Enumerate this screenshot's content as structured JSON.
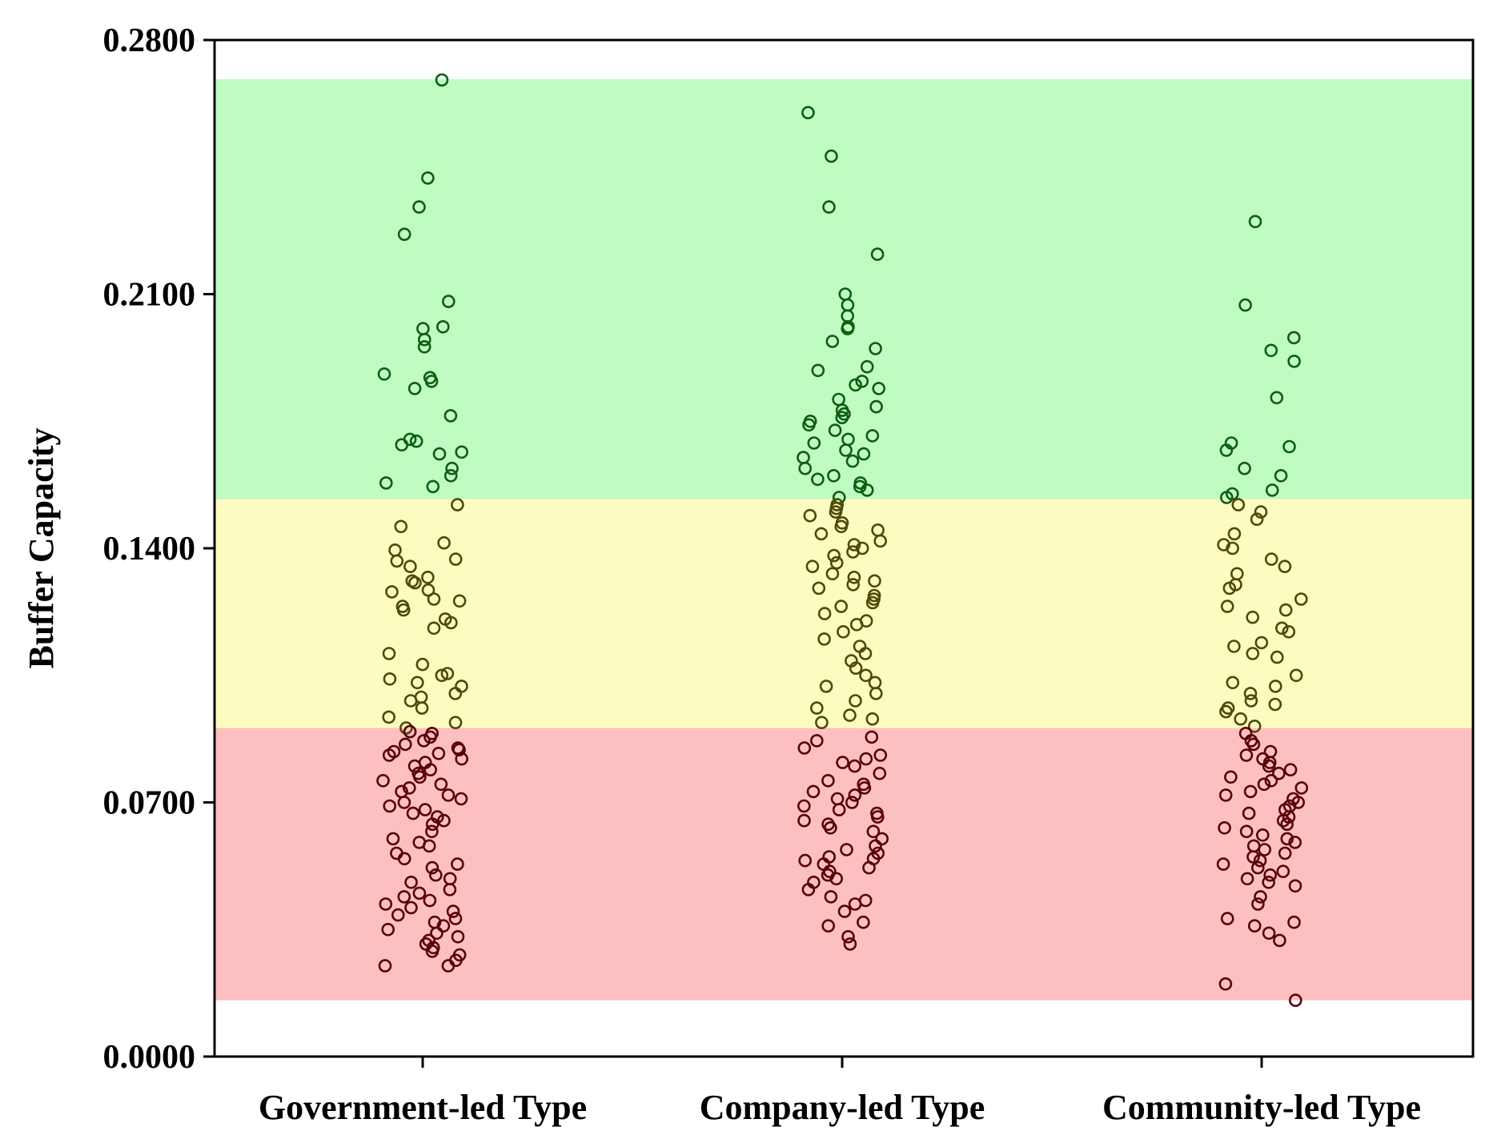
{
  "chart_data": {
    "type": "scatter",
    "title": "",
    "xlabel": "",
    "ylabel": "Buffer Capacity",
    "ylim": [
      0.0,
      0.28
    ],
    "yticks": [
      "0.0000",
      "0.0700",
      "0.1400",
      "0.2100",
      "0.2800"
    ],
    "categories": [
      "Government-led Type",
      "Company-led Type",
      "Community-led Type"
    ],
    "bands": [
      {
        "name": "high",
        "from": 0.1535,
        "to": 0.2692,
        "color": "#c0fbc1"
      },
      {
        "name": "medium",
        "from": 0.0905,
        "to": 0.1535,
        "color": "#fdfcc0"
      },
      {
        "name": "low",
        "from": 0.0155,
        "to": 0.0905,
        "color": "#fcc0c0"
      }
    ],
    "marker_color_scale": {
      "low": "#5a0008",
      "mid": "#4e4a06",
      "high": "#0c5e10"
    },
    "series": [
      {
        "name": "Government-led Type",
        "values": [
          0.269,
          0.242,
          0.234,
          0.2265,
          0.208,
          0.201,
          0.2005,
          0.1975,
          0.1955,
          0.188,
          0.187,
          0.186,
          0.184,
          0.1765,
          0.17,
          0.1695,
          0.1685,
          0.1665,
          0.166,
          0.162,
          0.16,
          0.158,
          0.157,
          0.152,
          0.146,
          0.1415,
          0.1395,
          0.137,
          0.1365,
          0.135,
          0.132,
          0.131,
          0.1305,
          0.1285,
          0.128,
          0.126,
          0.1255,
          0.124,
          0.123,
          0.1205,
          0.1195,
          0.118,
          0.111,
          0.108,
          0.1055,
          0.105,
          0.104,
          0.103,
          0.102,
          0.1,
          0.099,
          0.098,
          0.096,
          0.0935,
          0.092,
          0.0905,
          0.0895,
          0.089,
          0.088,
          0.087,
          0.086,
          0.085,
          0.0845,
          0.084,
          0.0835,
          0.083,
          0.082,
          0.081,
          0.08,
          0.079,
          0.078,
          0.077,
          0.076,
          0.075,
          0.074,
          0.073,
          0.072,
          0.071,
          0.07,
          0.069,
          0.068,
          0.067,
          0.066,
          0.065,
          0.064,
          0.062,
          0.06,
          0.059,
          0.058,
          0.056,
          0.0545,
          0.053,
          0.052,
          0.05,
          0.049,
          0.048,
          0.046,
          0.045,
          0.044,
          0.043,
          0.042,
          0.041,
          0.04,
          0.039,
          0.038,
          0.037,
          0.036,
          0.035,
          0.034,
          0.033,
          0.032,
          0.031,
          0.03,
          0.029,
          0.028,
          0.0265,
          0.025,
          0.025
        ]
      },
      {
        "name": "Company-led Type",
        "values": [
          0.26,
          0.248,
          0.234,
          0.221,
          0.21,
          0.207,
          0.204,
          0.201,
          0.2005,
          0.197,
          0.195,
          0.19,
          0.189,
          0.186,
          0.185,
          0.184,
          0.181,
          0.179,
          0.178,
          0.177,
          0.176,
          0.175,
          0.174,
          0.1725,
          0.171,
          0.17,
          0.169,
          0.167,
          0.166,
          0.165,
          0.164,
          0.162,
          0.16,
          0.159,
          0.158,
          0.157,
          0.156,
          0.154,
          0.152,
          0.151,
          0.15,
          0.149,
          0.147,
          0.146,
          0.145,
          0.144,
          0.142,
          0.141,
          0.14,
          0.139,
          0.138,
          0.136,
          0.135,
          0.133,
          0.132,
          0.131,
          0.13,
          0.129,
          0.127,
          0.126,
          0.125,
          0.124,
          0.122,
          0.12,
          0.119,
          0.117,
          0.115,
          0.113,
          0.111,
          0.109,
          0.107,
          0.105,
          0.103,
          0.102,
          0.1,
          0.098,
          0.096,
          0.094,
          0.093,
          0.092,
          0.088,
          0.087,
          0.085,
          0.083,
          0.082,
          0.081,
          0.08,
          0.078,
          0.076,
          0.075,
          0.074,
          0.073,
          0.072,
          0.071,
          0.07,
          0.069,
          0.068,
          0.067,
          0.066,
          0.065,
          0.064,
          0.063,
          0.062,
          0.06,
          0.058,
          0.057,
          0.056,
          0.055,
          0.0545,
          0.054,
          0.053,
          0.052,
          0.051,
          0.05,
          0.049,
          0.048,
          0.046,
          0.044,
          0.043,
          0.042,
          0.04,
          0.037,
          0.036,
          0.033,
          0.031
        ]
      },
      {
        "name": "Community-led Type",
        "values": [
          0.23,
          0.207,
          0.198,
          0.1945,
          0.1915,
          0.1815,
          0.169,
          0.168,
          0.167,
          0.162,
          0.16,
          0.156,
          0.155,
          0.154,
          0.152,
          0.15,
          0.148,
          0.144,
          0.141,
          0.14,
          0.137,
          0.135,
          0.133,
          0.13,
          0.129,
          0.126,
          0.124,
          0.123,
          0.121,
          0.118,
          0.117,
          0.114,
          0.113,
          0.111,
          0.11,
          0.105,
          0.103,
          0.102,
          0.1,
          0.098,
          0.097,
          0.096,
          0.095,
          0.093,
          0.091,
          0.089,
          0.087,
          0.086,
          0.084,
          0.083,
          0.082,
          0.081,
          0.08,
          0.079,
          0.078,
          0.077,
          0.076,
          0.075,
          0.074,
          0.073,
          0.072,
          0.071,
          0.07,
          0.069,
          0.068,
          0.067,
          0.066,
          0.065,
          0.064,
          0.063,
          0.062,
          0.061,
          0.06,
          0.059,
          0.058,
          0.057,
          0.056,
          0.055,
          0.054,
          0.053,
          0.052,
          0.051,
          0.05,
          0.049,
          0.048,
          0.047,
          0.044,
          0.042,
          0.038,
          0.037,
          0.036,
          0.034,
          0.032,
          0.02,
          0.0155
        ]
      }
    ]
  }
}
